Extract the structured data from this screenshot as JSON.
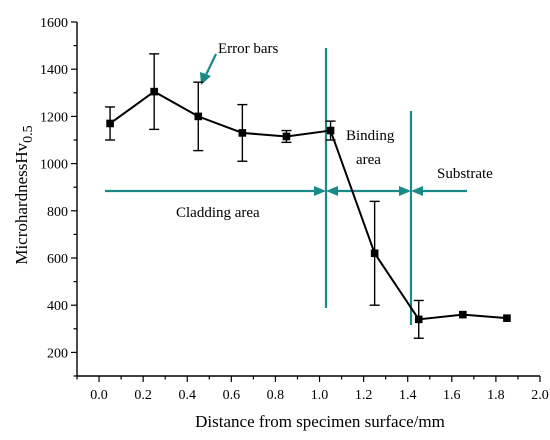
{
  "chart_data": {
    "type": "line",
    "x": [
      0.05,
      0.25,
      0.45,
      0.65,
      0.85,
      1.05,
      1.25,
      1.45,
      1.65,
      1.85
    ],
    "series": [
      {
        "values": [
          1170,
          1305,
          1200,
          1130,
          1115,
          1140,
          620,
          340,
          360,
          345
        ],
        "error": [
          70,
          160,
          145,
          120,
          25,
          40,
          220,
          80,
          0,
          0
        ]
      }
    ],
    "xlabel": "Distance from specimen surface/mm",
    "ylabel_main": "MicrohardnessHv",
    "ylabel_sub": "0.5",
    "xlim": [
      -0.1,
      2.0
    ],
    "ylim": [
      100,
      1600
    ],
    "xticks": [
      "0.0",
      "0.2",
      "0.4",
      "0.6",
      "0.8",
      "1.0",
      "1.2",
      "1.4",
      "1.6",
      "1.8",
      "2.0"
    ],
    "yticks": [
      "200",
      "400",
      "600",
      "800",
      "1000",
      "1200",
      "1400",
      "1600"
    ],
    "grid": false,
    "annotations": {
      "error_bars": "Error bars",
      "binding_line1": "Binding",
      "binding_line2": "area",
      "substrate": "Substrate",
      "cladding": "Cladding area"
    },
    "accent_color": "#1a8a88"
  }
}
